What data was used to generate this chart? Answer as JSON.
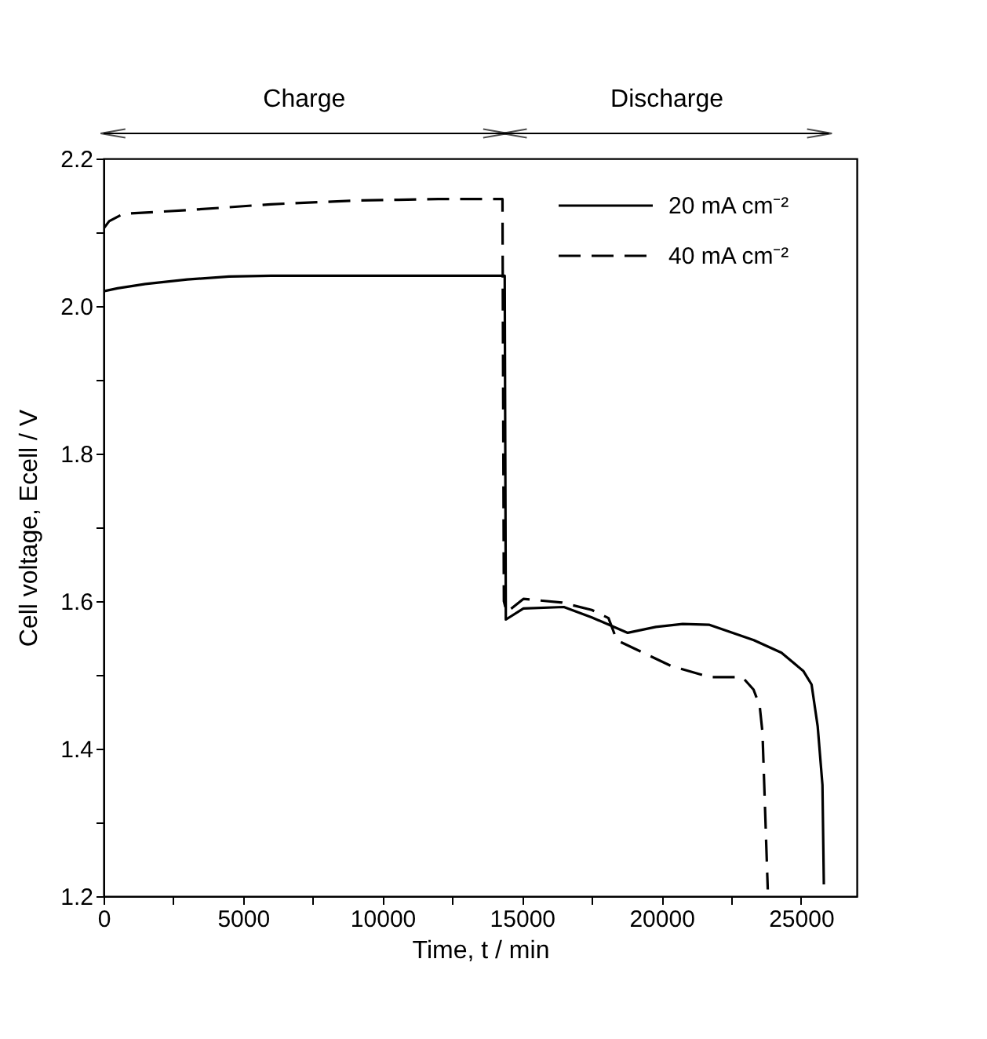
{
  "chart_data": {
    "type": "line",
    "xlabel": "Time, t / min",
    "ylabel": "Cell voltage, Ecell / V",
    "xlim": [
      0,
      27000
    ],
    "ylim": [
      1.2,
      2.2
    ],
    "xticks": [
      0,
      {
        "value": 2500,
        "label": null
      },
      5000,
      {
        "value": 7500,
        "label": null
      },
      10000,
      {
        "value": 12500,
        "label": null
      },
      15000,
      {
        "value": 17500,
        "label": null
      },
      20000,
      {
        "value": 22500,
        "label": null
      },
      25000
    ],
    "yticks": [
      1.2,
      {
        "value": 1.3,
        "label": null
      },
      1.4,
      {
        "value": 1.5,
        "label": null
      },
      1.6,
      {
        "value": 1.7,
        "label": null
      },
      1.8,
      {
        "value": 1.9,
        "label": null
      },
      {
        "value": 2.0,
        "label": "2.0"
      },
      {
        "value": 2.1,
        "label": null
      },
      2.2
    ],
    "grid": false,
    "legend": "top right",
    "annotations": [
      "Charge",
      "Discharge"
    ],
    "series": [
      {
        "name": "20 mA cm⁻²",
        "color": "#000000",
        "line_style": "solid",
        "x": [
          0,
          500,
          1500,
          3000,
          4500,
          6000,
          10000,
          14380,
          14420,
          15050,
          16500,
          17500,
          18790,
          19800,
          20760,
          21700,
          23310,
          24300,
          25090,
          25380,
          25600,
          25770,
          25820
        ],
        "values": [
          2.02,
          2.024,
          2.03,
          2.036,
          2.04,
          2.041,
          2.041,
          2.041,
          1.575,
          1.59,
          1.592,
          1.578,
          1.557,
          1.565,
          1.569,
          1.568,
          1.547,
          1.53,
          1.505,
          1.487,
          1.43,
          1.351,
          1.216
        ]
      },
      {
        "name": "40 mA cm⁻²",
        "color": "#000000",
        "line_style": "dashed",
        "x": [
          0,
          200,
          700,
          3000,
          6000,
          9000,
          12000,
          14300,
          14350,
          14450,
          15050,
          16440,
          17500,
          18100,
          18400,
          20350,
          21730,
          22900,
          23300,
          23520,
          23620,
          23810
        ],
        "values": [
          2.105,
          2.115,
          2.125,
          2.13,
          2.138,
          2.143,
          2.145,
          2.145,
          1.6,
          1.585,
          1.603,
          1.598,
          1.588,
          1.577,
          1.547,
          1.512,
          1.497,
          1.497,
          1.48,
          1.458,
          1.422,
          1.209
        ]
      }
    ]
  }
}
